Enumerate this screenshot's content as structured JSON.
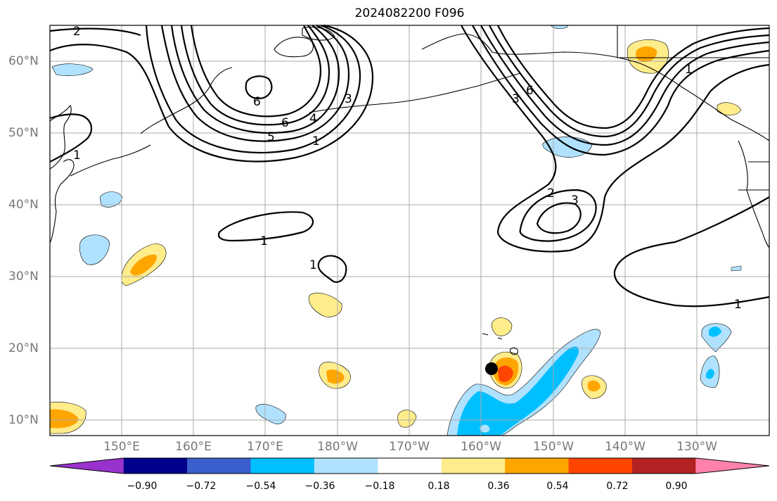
{
  "title": "2024082200 F096",
  "lat_labels": [
    "60°N",
    "50°N",
    "40°N",
    "30°N",
    "20°N",
    "10°N"
  ],
  "lon_labels": [
    "150°E",
    "160°E",
    "170°E",
    "180°W",
    "170°W",
    "160°W",
    "150°W",
    "140°W",
    "130°W"
  ],
  "contour_labels": [
    "2",
    "6",
    "5",
    "6",
    "4",
    "3",
    "1",
    "1",
    "6",
    "3",
    "2",
    "3",
    "1",
    "1",
    "1",
    "1"
  ],
  "colorbar": {
    "ticks": [
      "−0.90",
      "−0.72",
      "−0.54",
      "−0.36",
      "−0.18",
      "0.18",
      "0.36",
      "0.54",
      "0.72",
      "0.90"
    ],
    "colors": [
      "#9932CC",
      "#00008B",
      "#3A5FCD",
      "#00BFFF",
      "#B0E2FF",
      "#FFFFFF",
      "#FFEC8B",
      "#FFA500",
      "#FF4500",
      "#B22222",
      "#FF82AB"
    ]
  },
  "marker": {
    "label": "storm-position",
    "lon_deg": -158.3,
    "lat_deg": 17.2
  }
}
